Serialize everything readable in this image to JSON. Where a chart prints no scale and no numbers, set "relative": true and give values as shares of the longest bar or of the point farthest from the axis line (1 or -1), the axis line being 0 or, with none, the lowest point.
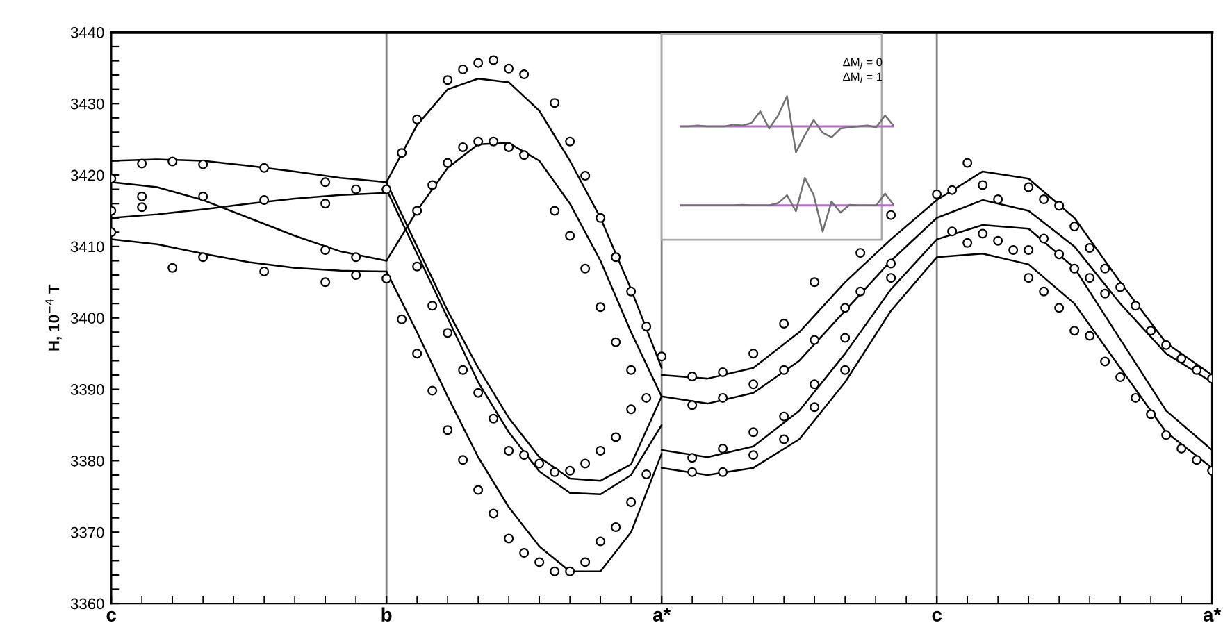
{
  "chart_data": [
    {
      "type": "line",
      "ylabel": "H, 10$^{−4}$ T",
      "categories": [
        "c",
        null,
        null,
        null,
        null,
        null,
        null,
        null,
        null,
        null,
        null,
        null,
        null,
        null,
        null,
        null,
        null,
        null,
        "b",
        null,
        null,
        null,
        null,
        null,
        null,
        null,
        null,
        null,
        null,
        null,
        null,
        null,
        null,
        null,
        null,
        null,
        "a*",
        null,
        null,
        null,
        null,
        null,
        null,
        null,
        null,
        null,
        null,
        null,
        null,
        null,
        null,
        null,
        null,
        null,
        "c",
        null,
        null,
        null,
        null,
        null,
        null,
        null,
        null,
        null,
        null,
        null,
        null,
        null,
        null,
        null,
        null,
        null,
        "a*"
      ],
      "ylim": [
        3360,
        3440
      ],
      "yticks": [
        3360,
        {
          "value": 3362,
          "label": null
        },
        {
          "value": 3364,
          "label": null
        },
        {
          "value": 3366,
          "label": null
        },
        {
          "value": 3368,
          "label": null
        },
        3370,
        {
          "value": 3372,
          "label": null
        },
        {
          "value": 3374,
          "label": null
        },
        {
          "value": 3376,
          "label": null
        },
        {
          "value": 3378,
          "label": null
        },
        3380,
        {
          "value": 3382,
          "label": null
        },
        {
          "value": 3384,
          "label": null
        },
        {
          "value": 3386,
          "label": null
        },
        {
          "value": 3388,
          "label": null
        },
        3390,
        {
          "value": 3392,
          "label": null
        },
        {
          "value": 3394,
          "label": null
        },
        {
          "value": 3396,
          "label": null
        },
        {
          "value": 3398,
          "label": null
        },
        3400,
        {
          "value": 3402,
          "label": null
        },
        {
          "value": 3404,
          "label": null
        },
        {
          "value": 3406,
          "label": null
        },
        {
          "value": 3408,
          "label": null
        },
        3410,
        {
          "value": 3412,
          "label": null
        },
        {
          "value": 3414,
          "label": null
        },
        {
          "value": 3416,
          "label": null
        },
        {
          "value": 3418,
          "label": null
        },
        3420,
        {
          "value": 3422,
          "label": null
        },
        {
          "value": 3424,
          "label": null
        },
        {
          "value": 3426,
          "label": null
        },
        {
          "value": 3428,
          "label": null
        },
        3430,
        {
          "value": 3432,
          "label": null
        },
        {
          "value": 3434,
          "label": null
        },
        {
          "value": 3436,
          "label": null
        },
        {
          "value": 3438,
          "label": null
        },
        3440
      ],
      "grid": "x",
      "line_style": "solid",
      "series": [
        {
          "color": "#000000",
          "values": [
            3422,
            null,
            null,
            3422.2,
            null,
            null,
            3422,
            null,
            null,
            3421.3,
            null,
            null,
            3420.5,
            null,
            null,
            3419.6,
            null,
            null,
            3419,
            null,
            null,
            null,
            null,
            null,
            null,
            null,
            null,
            null,
            null,
            null,
            null,
            null,
            null,
            null,
            null,
            null,
            null,
            null,
            null,
            null,
            null,
            null,
            null,
            null,
            null,
            null,
            null,
            null,
            null,
            null,
            null,
            null,
            null,
            null,
            null,
            null,
            null,
            null,
            null,
            null,
            null,
            null,
            null,
            null,
            null,
            null,
            null,
            null,
            null,
            null,
            null,
            null,
            null
          ]
        },
        {
          "color": "#000000",
          "values": [
            3419,
            null,
            null,
            3418.3,
            null,
            null,
            3416.5,
            null,
            null,
            3414,
            null,
            null,
            3411.5,
            null,
            null,
            3409.3,
            null,
            null,
            3408,
            null,
            null,
            null,
            null,
            null,
            null,
            null,
            null,
            null,
            null,
            null,
            null,
            null,
            null,
            null,
            null,
            null,
            null,
            null,
            null,
            null,
            null,
            null,
            null,
            null,
            null,
            null,
            null,
            null,
            null,
            null,
            null,
            null,
            null,
            null,
            null,
            null,
            null,
            null,
            null,
            null,
            null,
            null,
            null,
            null,
            null,
            null,
            null,
            null,
            null,
            null,
            null,
            null,
            null
          ]
        },
        {
          "color": "#000000",
          "values": [
            3414,
            null,
            null,
            3414.5,
            null,
            null,
            3415.2,
            null,
            null,
            3416,
            null,
            null,
            3416.7,
            null,
            null,
            3417.2,
            null,
            null,
            3417.5,
            null,
            null,
            null,
            null,
            null,
            null,
            null,
            null,
            null,
            null,
            null,
            null,
            null,
            null,
            null,
            null,
            null,
            null,
            null,
            null,
            null,
            null,
            null,
            null,
            null,
            null,
            null,
            null,
            null,
            null,
            null,
            null,
            null,
            null,
            null,
            null,
            null,
            null,
            null,
            null,
            null,
            null,
            null,
            null,
            null,
            null,
            null,
            null,
            null,
            null,
            null,
            null,
            null,
            null
          ]
        },
        {
          "color": "#000000",
          "values": [
            3411,
            null,
            null,
            3410.3,
            null,
            null,
            3409,
            null,
            null,
            3407.8,
            null,
            null,
            3407,
            null,
            null,
            3406.6,
            null,
            null,
            3406.5,
            null,
            null,
            null,
            null,
            null,
            null,
            null,
            null,
            null,
            null,
            null,
            null,
            null,
            null,
            null,
            null,
            null,
            null,
            null,
            null,
            null,
            null,
            null,
            null,
            null,
            null,
            null,
            null,
            null,
            null,
            null,
            null,
            null,
            null,
            null,
            null,
            null,
            null,
            null,
            null,
            null,
            null,
            null,
            null,
            null,
            null,
            null,
            null,
            null,
            null,
            null,
            null,
            null,
            null
          ]
        },
        {
          "color": "#000000",
          "values": [
            null,
            null,
            null,
            null,
            null,
            null,
            null,
            null,
            null,
            null,
            null,
            null,
            null,
            null,
            null,
            null,
            null,
            null,
            3419,
            null,
            3427,
            null,
            3432,
            null,
            3433.5,
            null,
            3433,
            null,
            3429,
            null,
            3422,
            null,
            3414,
            null,
            3404,
            null,
            3393,
            null,
            null,
            null,
            null,
            null,
            null,
            null,
            null,
            null,
            null,
            null,
            null,
            null,
            null,
            null,
            null,
            null,
            null,
            null,
            null,
            null,
            null,
            null,
            null,
            null,
            null,
            null,
            null,
            null,
            null,
            null,
            null,
            null,
            null,
            null,
            null
          ]
        },
        {
          "color": "#000000",
          "values": [
            null,
            null,
            null,
            null,
            null,
            null,
            null,
            null,
            null,
            null,
            null,
            null,
            null,
            null,
            null,
            null,
            null,
            null,
            3408,
            null,
            3415,
            null,
            3421,
            null,
            3424.3,
            null,
            3424.5,
            null,
            3422,
            null,
            3416,
            null,
            3408,
            null,
            3398,
            null,
            3389,
            null,
            null,
            null,
            null,
            null,
            null,
            null,
            null,
            null,
            null,
            null,
            null,
            null,
            null,
            null,
            null,
            null,
            null,
            null,
            null,
            null,
            null,
            null,
            null,
            null,
            null,
            null,
            null,
            null,
            null,
            null,
            null,
            null,
            null,
            null,
            null
          ]
        },
        {
          "color": "#000000",
          "values": [
            null,
            null,
            null,
            null,
            null,
            null,
            null,
            null,
            null,
            null,
            null,
            null,
            null,
            null,
            null,
            null,
            null,
            null,
            3419,
            null,
            3410,
            null,
            3401,
            null,
            3393,
            null,
            3386,
            null,
            3380.5,
            null,
            3377.5,
            null,
            3377.2,
            null,
            3379.5,
            null,
            3389,
            null,
            null,
            null,
            null,
            null,
            null,
            null,
            null,
            null,
            null,
            null,
            null,
            null,
            null,
            null,
            null,
            null,
            null,
            null,
            null,
            null,
            null,
            null,
            null,
            null,
            null,
            null,
            null,
            null,
            null,
            null,
            null,
            null,
            null,
            null,
            null
          ]
        },
        {
          "color": "#000000",
          "values": [
            null,
            null,
            null,
            null,
            null,
            null,
            null,
            null,
            null,
            null,
            null,
            null,
            null,
            null,
            null,
            null,
            null,
            null,
            3418,
            null,
            3409,
            null,
            3400,
            null,
            3391,
            null,
            3384,
            null,
            3378.5,
            null,
            3375.5,
            null,
            3375.3,
            null,
            3378,
            null,
            3385,
            null,
            null,
            null,
            null,
            null,
            null,
            null,
            null,
            null,
            null,
            null,
            null,
            null,
            null,
            null,
            null,
            null,
            null,
            null,
            null,
            null,
            null,
            null,
            null,
            null,
            null,
            null,
            null,
            null,
            null,
            null,
            null,
            null,
            null,
            null,
            null
          ]
        },
        {
          "color": "#000000",
          "values": [
            null,
            null,
            null,
            null,
            null,
            null,
            null,
            null,
            null,
            null,
            null,
            null,
            null,
            null,
            null,
            null,
            null,
            null,
            3406.5,
            null,
            3398,
            null,
            3389,
            null,
            3380.5,
            null,
            3373.5,
            null,
            3368,
            null,
            3364.5,
            null,
            3364.5,
            null,
            3370,
            null,
            3381,
            null,
            null,
            null,
            null,
            null,
            null,
            null,
            null,
            null,
            null,
            null,
            null,
            null,
            null,
            null,
            null,
            null,
            null,
            null,
            null,
            null,
            null,
            null,
            null,
            null,
            null,
            null,
            null,
            null,
            null,
            null,
            null,
            null,
            null,
            null,
            null
          ]
        },
        {
          "color": "#000000",
          "values": [
            null,
            null,
            null,
            null,
            null,
            null,
            null,
            null,
            null,
            null,
            null,
            null,
            null,
            null,
            null,
            null,
            null,
            null,
            null,
            null,
            null,
            null,
            null,
            null,
            null,
            null,
            null,
            null,
            null,
            null,
            null,
            null,
            null,
            null,
            null,
            null,
            3392,
            null,
            null,
            3391.5,
            null,
            null,
            3393,
            null,
            null,
            3398,
            null,
            null,
            3405,
            null,
            null,
            3411,
            null,
            null,
            3416.5,
            null,
            null,
            3420.5,
            null,
            null,
            3419.5,
            null,
            null,
            3414,
            null,
            null,
            3405,
            null,
            null,
            3396.5,
            null,
            null,
            3392
          ]
        },
        {
          "color": "#000000",
          "values": [
            null,
            null,
            null,
            null,
            null,
            null,
            null,
            null,
            null,
            null,
            null,
            null,
            null,
            null,
            null,
            null,
            null,
            null,
            null,
            null,
            null,
            null,
            null,
            null,
            null,
            null,
            null,
            null,
            null,
            null,
            null,
            null,
            null,
            null,
            null,
            null,
            3389,
            null,
            null,
            3388,
            null,
            null,
            3389.5,
            null,
            null,
            3394,
            null,
            null,
            3401,
            null,
            null,
            3408,
            null,
            null,
            3414,
            null,
            null,
            3416.5,
            null,
            null,
            3415,
            null,
            null,
            3410,
            null,
            null,
            3402,
            null,
            null,
            3395,
            null,
            null,
            3391
          ]
        },
        {
          "color": "#000000",
          "values": [
            null,
            null,
            null,
            null,
            null,
            null,
            null,
            null,
            null,
            null,
            null,
            null,
            null,
            null,
            null,
            null,
            null,
            null,
            null,
            null,
            null,
            null,
            null,
            null,
            null,
            null,
            null,
            null,
            null,
            null,
            null,
            null,
            null,
            null,
            null,
            null,
            3381.5,
            null,
            null,
            3380.5,
            null,
            null,
            3382,
            null,
            null,
            3387,
            null,
            null,
            3395,
            null,
            null,
            3404,
            null,
            null,
            3411,
            null,
            null,
            3413,
            null,
            null,
            3412.5,
            null,
            null,
            3407,
            null,
            null,
            3397,
            null,
            null,
            3387,
            null,
            null,
            3381.5
          ]
        },
        {
          "color": "#000000",
          "values": [
            null,
            null,
            null,
            null,
            null,
            null,
            null,
            null,
            null,
            null,
            null,
            null,
            null,
            null,
            null,
            null,
            null,
            null,
            null,
            null,
            null,
            null,
            null,
            null,
            null,
            null,
            null,
            null,
            null,
            null,
            null,
            null,
            null,
            null,
            null,
            null,
            3379,
            null,
            null,
            3378,
            null,
            null,
            3379,
            null,
            null,
            3383,
            null,
            null,
            3391,
            null,
            null,
            3401,
            null,
            null,
            3408.5,
            null,
            null,
            3409,
            null,
            null,
            3407.5,
            null,
            null,
            3402,
            null,
            null,
            3393,
            null,
            null,
            3384,
            null,
            null,
            3379
          ]
        },
        {
          "type": "scatter",
          "color": "#000000",
          "marker": "circle",
          "values": [
            null,
            null,
            3421.6,
            null,
            3421.9,
            null,
            3421.5,
            null,
            null,
            null,
            3421,
            null,
            null,
            null,
            3419,
            null,
            3418,
            null,
            3418,
            3423.1,
            3427.8,
            null,
            3433.3,
            3434.8,
            3435.7,
            3436.1,
            3434.9,
            3434.1,
            null,
            3430.1,
            3424.7,
            3419.9,
            3414,
            3408.5,
            3403.7,
            3398.8,
            3394.6,
            null,
            3391.8,
            null,
            3392.4,
            null,
            3395,
            null,
            3399.2,
            null,
            3405,
            null,
            null,
            3409.1,
            null,
            3414.4,
            null,
            null,
            3417.3,
            3417.9,
            3421.7,
            3418.6,
            3416.6,
            null,
            3418.3,
            3416.6,
            3415.7,
            3412.8,
            3409.8,
            3406.9,
            3404.3,
            3401.7,
            3398.2,
            3396.2,
            3394.3,
            3392.7,
            3391.5
          ]
        },
        {
          "type": "scatter",
          "color": "#000000",
          "marker": "circle",
          "values": [
            3419.5,
            null,
            3417,
            null,
            null,
            null,
            3417,
            null,
            null,
            null,
            3416.5,
            null,
            null,
            null,
            3416,
            null,
            null,
            null,
            null,
            null,
            3415,
            3418.6,
            3421.7,
            3423.9,
            3424.7,
            3424.7,
            3423.9,
            3422.8,
            null,
            3415,
            3411.5,
            3406.9,
            3401.5,
            3396.6,
            3392.7,
            3388.8,
            null,
            null,
            3387.8,
            null,
            3388.8,
            null,
            3390.7,
            null,
            3392.7,
            null,
            3396.9,
            null,
            3401.4,
            3403.7,
            null,
            3407.6,
            null,
            null,
            null,
            3412.1,
            3410.5,
            3411.8,
            3410.8,
            3409.5,
            3409.5,
            3411.1,
            3408.9,
            3406.9,
            3405.6,
            3403.4,
            null,
            null,
            null,
            null,
            null,
            null,
            null
          ]
        },
        {
          "type": "scatter",
          "color": "#000000",
          "marker": "circle",
          "values": [
            3415,
            null,
            3415.5,
            null,
            null,
            null,
            null,
            null,
            null,
            null,
            null,
            null,
            null,
            null,
            3409.5,
            null,
            3408.5,
            null,
            null,
            null,
            3407.2,
            3401.7,
            3397.9,
            3392.7,
            3389.5,
            3385.9,
            3381.4,
            3380.8,
            3379.6,
            3378.4,
            3378.6,
            3379.6,
            3381.4,
            3383.3,
            3387.2,
            null,
            null,
            null,
            3380.4,
            null,
            3381.7,
            null,
            3384,
            null,
            3386.2,
            null,
            3390.7,
            null,
            3397.2,
            null,
            null,
            3405.6,
            null,
            null,
            null,
            null,
            null,
            null,
            null,
            null,
            3405.6,
            3403.7,
            3401.4,
            3398.2,
            3397.5,
            3393.9,
            3391.7,
            3388.8,
            3386.5,
            3383.6,
            3381.7,
            3380.1,
            3378.6
          ]
        },
        {
          "type": "scatter",
          "color": "#000000",
          "marker": "circle",
          "values": [
            3412,
            null,
            null,
            null,
            3407,
            null,
            3408.5,
            null,
            null,
            null,
            3406.5,
            null,
            null,
            null,
            3405,
            null,
            3406,
            null,
            3405.5,
            3399.8,
            3395,
            3389.8,
            3384.3,
            3380.1,
            3375.9,
            3372.6,
            3369.1,
            3367.1,
            3365.8,
            3364.5,
            3364.5,
            3365.8,
            3368.7,
            3370.7,
            3374.2,
            3378.1,
            null,
            null,
            3378.4,
            null,
            3378.4,
            null,
            3380.8,
            null,
            3383,
            null,
            3387.5,
            null,
            3392.7,
            null,
            null,
            null,
            null,
            null,
            null,
            null,
            null,
            null,
            null,
            null,
            null,
            null,
            null,
            null,
            null,
            null,
            null,
            null,
            null,
            null,
            null,
            null,
            null
          ]
        }
      ]
    },
    {
      "type": "line",
      "relative": true,
      "line_style": "solid",
      "categories": [
        null,
        null,
        null,
        null,
        null,
        null,
        null,
        null,
        null,
        null,
        null,
        null,
        null,
        null,
        null,
        null,
        null,
        null,
        null,
        null,
        null,
        null,
        null,
        null,
        null
      ],
      "annotations": [
        "ΔM$_{J}$ = 0",
        "ΔM$_{I}$ = 1"
      ],
      "ref_lines": [
        {
          "axis": "y",
          "value": 0,
          "color": "#b070c0"
        }
      ],
      "series": [
        {
          "color": "#707070",
          "values": [
            0,
            0,
            0.03,
            0,
            0,
            0,
            0.06,
            0.03,
            0.11,
            0.5,
            -0.07,
            0.36,
            1,
            -0.86,
            -0.29,
            0.21,
            -0.21,
            -0.36,
            -0.07,
            -0.03,
            0,
            0.03,
            -0.03,
            0.36,
            0
          ]
        }
      ]
    },
    {
      "type": "line",
      "relative": true,
      "line_style": "solid",
      "categories": [
        null,
        null,
        null,
        null,
        null,
        null,
        null,
        null,
        null,
        null,
        null,
        null,
        null,
        null,
        null,
        null,
        null,
        null,
        null,
        null,
        null,
        null,
        null,
        null,
        null
      ],
      "ref_lines": [
        {
          "axis": "y",
          "value": 0,
          "color": "#b070c0"
        }
      ],
      "series": [
        {
          "color": "#707070",
          "values": [
            0,
            0,
            0,
            0,
            0,
            0,
            0,
            0.02,
            0,
            0,
            0,
            0.08,
            0.37,
            -0.21,
            1,
            0.37,
            -0.95,
            0.14,
            -0.26,
            0.02,
            0,
            0,
            0,
            0.43,
            0
          ]
        }
      ]
    }
  ]
}
